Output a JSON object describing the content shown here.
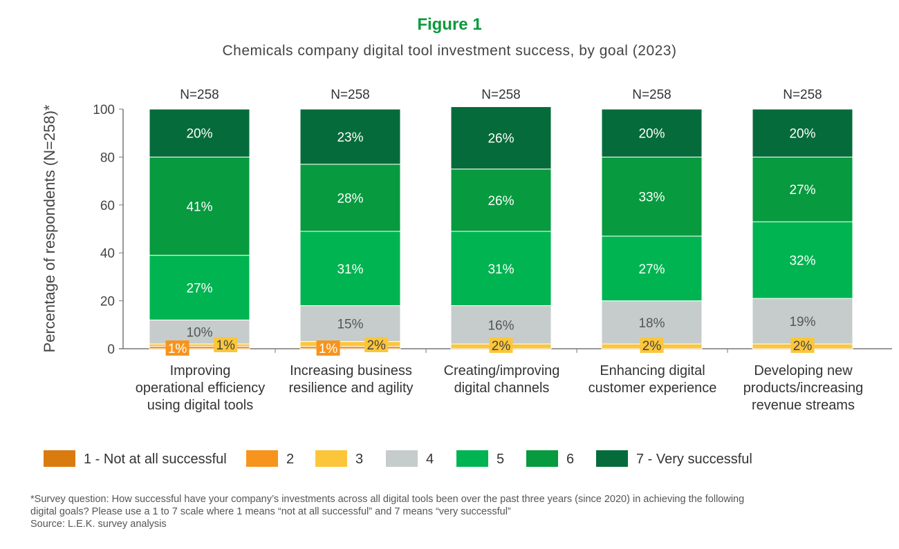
{
  "chart_data": {
    "type": "bar",
    "stacked": true,
    "title": "Figure 1",
    "subtitle": "Chemicals company digital tool investment success, by goal (2023)",
    "ylabel": "Percentage of respondents (N=258)*",
    "ylim": [
      0,
      100
    ],
    "yticks": [
      "0",
      "20",
      "40",
      "60",
      "80",
      "100"
    ],
    "categories": [
      "Improving operational efficiency using digital tools",
      "Increasing business resilience and agility",
      "Creating/improving digital channels",
      "Enhancing digital customer experience",
      "Developing new products/increasing revenue streams"
    ],
    "category_lines": [
      [
        "Improving",
        "operational efficiency",
        "using digital tools"
      ],
      [
        "Increasing business",
        "resilience and agility"
      ],
      [
        "Creating/improving",
        "digital channels"
      ],
      [
        "Enhancing digital",
        "customer experience"
      ],
      [
        "Developing new",
        "products/increasing",
        "revenue streams"
      ]
    ],
    "n_labels": [
      "N=258",
      "N=258",
      "N=258",
      "N=258",
      "N=258"
    ],
    "legend_position": "bottom",
    "series": [
      {
        "name": "1 - Not at all successful",
        "color": "#d97b0f",
        "values": [
          0,
          0,
          0,
          0,
          0
        ]
      },
      {
        "name": "2",
        "color": "#f7941d",
        "values": [
          1,
          1,
          0,
          0,
          0
        ]
      },
      {
        "name": "3",
        "color": "#fcc63a",
        "values": [
          1,
          2,
          2,
          2,
          2
        ]
      },
      {
        "name": "4",
        "color": "#c5cccb",
        "values": [
          10,
          15,
          16,
          18,
          19
        ]
      },
      {
        "name": "5",
        "color": "#00b451",
        "values": [
          27,
          31,
          31,
          27,
          32
        ]
      },
      {
        "name": "6",
        "color": "#079a3f",
        "values": [
          41,
          28,
          26,
          33,
          27
        ]
      },
      {
        "name": "7 - Very successful",
        "color": "#066b3a",
        "values": [
          20,
          23,
          26,
          20,
          20
        ]
      }
    ]
  },
  "footnote": [
    "*Survey question: How successful have your company’s investments across all digital tools been over the past three years (since 2020) in achieving the following",
    "digital goals? Please use a 1 to 7 scale where 1 means “not at all successful” and 7 means “very successful”",
    "Source: L.E.K. survey analysis"
  ]
}
